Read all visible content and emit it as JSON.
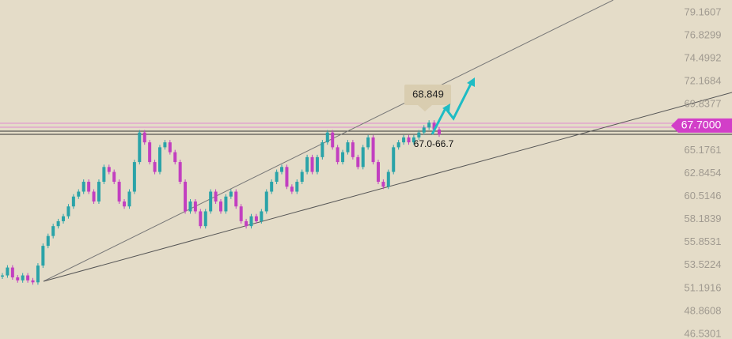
{
  "chart_data": {
    "type": "candles",
    "values": [
      52.5,
      53.3,
      52.3,
      52.0,
      52.5,
      52.0,
      51.8,
      53.5,
      55.5,
      56.5,
      57.5,
      58.0,
      58.5,
      59.5,
      60.5,
      61.0,
      62.0,
      61.0,
      60.0,
      62.0,
      63.5,
      63.0,
      62.0,
      60.0,
      59.5,
      61.0,
      64.0,
      67.0,
      66.0,
      64.0,
      63.0,
      65.5,
      66.0,
      65.0,
      64.0,
      62.0,
      59.0,
      60.0,
      59.0,
      57.5,
      59.0,
      61.0,
      60.0,
      59.0,
      60.5,
      61.0,
      59.5,
      58.0,
      57.5,
      58.5,
      58.0,
      59.0,
      61.0,
      62.0,
      63.0,
      63.5,
      61.5,
      61.0,
      62.0,
      63.0,
      64.5,
      63.0,
      64.5,
      66.0,
      67.0,
      65.5,
      64.0,
      65.0,
      66.0,
      64.5,
      63.5,
      65.5,
      66.5,
      64.0,
      62.0,
      61.5,
      63.0,
      65.5,
      66.0,
      66.5,
      66.0,
      66.5,
      67.0,
      67.5,
      68.0,
      67.3,
      66.8
    ],
    "up_color": "#2aa3a8",
    "down_color": "#c23fc0",
    "ylim": [
      46.05,
      80.44
    ],
    "yticks": [
      46.5301,
      48.8608,
      51.1916,
      53.5224,
      55.8531,
      58.1839,
      60.5146,
      62.8454,
      65.1761,
      69.8377,
      72.1684,
      74.4992,
      76.8299,
      79.1607
    ],
    "current_price": {
      "value": 67.7,
      "label": "67.7000"
    },
    "annotations": [
      "68.849",
      "67.0-66.7"
    ]
  }
}
